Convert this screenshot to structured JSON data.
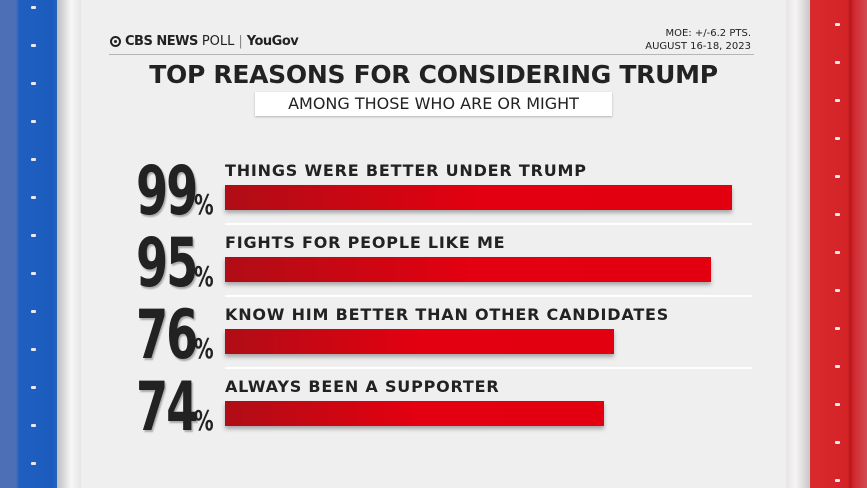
{
  "header": {
    "logo_cbs": "CBS NEWS",
    "logo_poll": "POLL",
    "logo_sep": "|",
    "logo_yougov": "YouGov",
    "moe": "MOE: +/-6.2 PTS.",
    "dates": "AUGUST 16-18, 2023"
  },
  "colors": {
    "bar": "#e20010",
    "left_border": "#1b5cbd",
    "right_border": "#d42327"
  },
  "chart_data": {
    "type": "bar",
    "title": "TOP REASONS FOR CONSIDERING TRUMP",
    "subtitle": "AMONG THOSE WHO ARE OR MIGHT",
    "categories": [
      "THINGS WERE BETTER UNDER TRUMP",
      "FIGHTS FOR PEOPLE LIKE ME",
      "KNOW HIM BETTER THAN OTHER CANDIDATES",
      "ALWAYS BEEN A SUPPORTER"
    ],
    "values": [
      99,
      95,
      76,
      74
    ],
    "value_labels": [
      "99",
      "95",
      "76",
      "74"
    ],
    "unit": "%",
    "ylim": [
      0,
      100
    ]
  }
}
